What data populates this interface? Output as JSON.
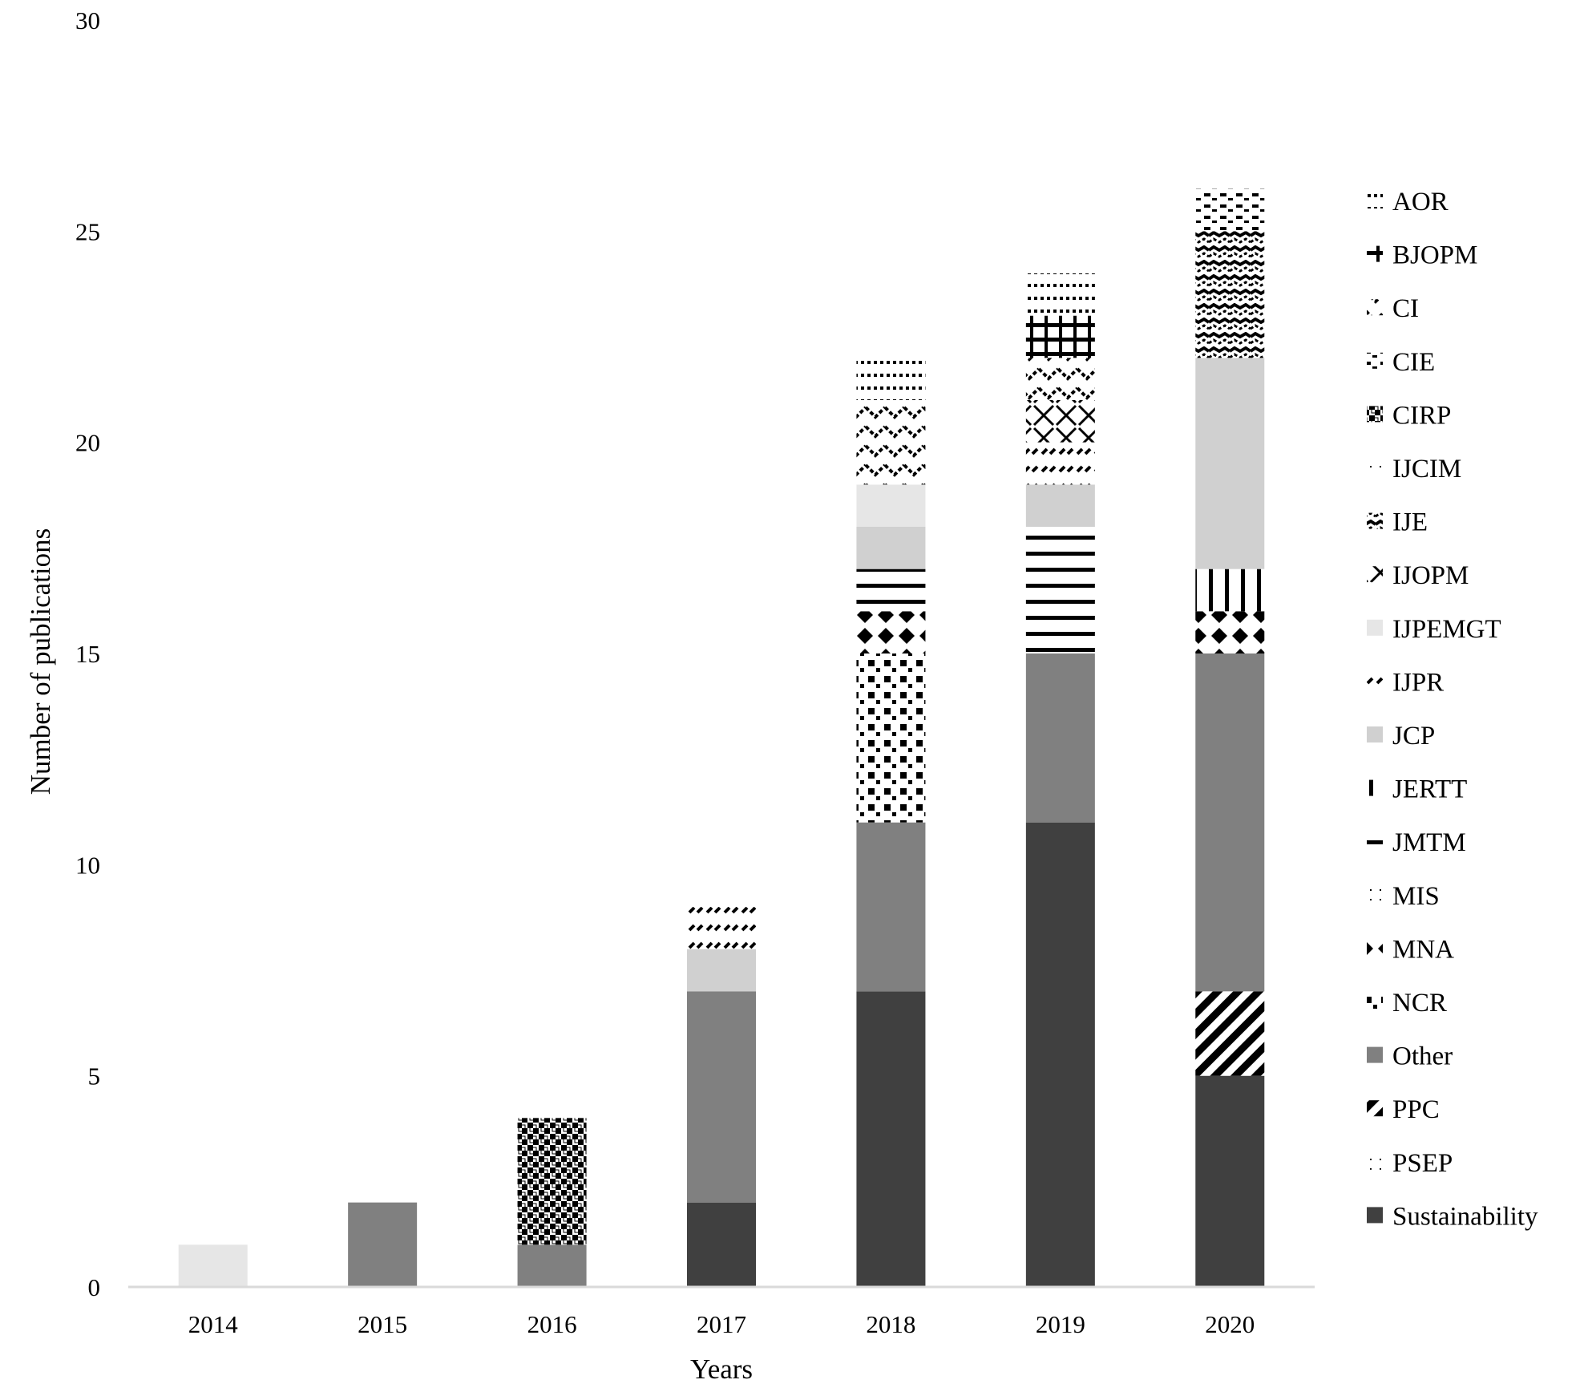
{
  "chart_data": {
    "type": "bar",
    "stacked": true,
    "title": "",
    "xlabel": "Years",
    "ylabel": "Number of publications",
    "ylim": [
      0,
      30
    ],
    "yticks": [
      "0",
      "5",
      "10",
      "15",
      "20",
      "25",
      "30"
    ],
    "grid": false,
    "legend_position": "right",
    "categories": [
      "2014",
      "2015",
      "2016",
      "2017",
      "2018",
      "2019",
      "2020"
    ],
    "series": [
      {
        "name": "AOR",
        "values": [
          0,
          0,
          0,
          0,
          1,
          1,
          0
        ],
        "color": "#ffffff",
        "pattern": "dots-sparse"
      },
      {
        "name": "BJOPM",
        "values": [
          0,
          0,
          0,
          0,
          0,
          1,
          0
        ],
        "color": "#000000",
        "pattern": "grid-bold"
      },
      {
        "name": "CI",
        "values": [
          0,
          0,
          0,
          0,
          2,
          1,
          0
        ],
        "color": "#000000",
        "pattern": "zigzag"
      },
      {
        "name": "CIE",
        "values": [
          0,
          0,
          0,
          0,
          0,
          0,
          1
        ],
        "color": "#000000",
        "pattern": "dashes"
      },
      {
        "name": "CIRP",
        "values": [
          0,
          0,
          3,
          0,
          0,
          0,
          0
        ],
        "color": "#000000",
        "pattern": "checker"
      },
      {
        "name": "IJCIM",
        "values": [
          0,
          0,
          0,
          0,
          0,
          0,
          0
        ],
        "color": "#000000",
        "pattern": "dots"
      },
      {
        "name": "IJE",
        "values": [
          0,
          0,
          0,
          0,
          0,
          0,
          3
        ],
        "color": "#000000",
        "pattern": "waves"
      },
      {
        "name": "IJOPM",
        "values": [
          0,
          0,
          0,
          0,
          0,
          1,
          0
        ],
        "color": "#000000",
        "pattern": "crosshatch"
      },
      {
        "name": "IJPEMGT",
        "values": [
          1,
          0,
          0,
          0,
          1,
          0,
          0
        ],
        "color": "#e6e6e6",
        "pattern": "solid"
      },
      {
        "name": "IJPR",
        "values": [
          0,
          0,
          0,
          1,
          0,
          1,
          0
        ],
        "color": "#000000",
        "pattern": "diagonal-dash"
      },
      {
        "name": "JCP",
        "values": [
          0,
          0,
          0,
          1,
          1,
          1,
          5
        ],
        "color": "#d0d0d0",
        "pattern": "solid"
      },
      {
        "name": "JERTT",
        "values": [
          0,
          0,
          0,
          0,
          0,
          0,
          1
        ],
        "color": "#000000",
        "pattern": "vertical-lines"
      },
      {
        "name": "JMTM",
        "values": [
          0,
          0,
          0,
          0,
          1,
          3,
          0
        ],
        "color": "#000000",
        "pattern": "horizontal-lines"
      },
      {
        "name": "MIS",
        "values": [
          0,
          0,
          0,
          0,
          0,
          0,
          0
        ],
        "color": "#000000",
        "pattern": "dots"
      },
      {
        "name": "MNA",
        "values": [
          0,
          0,
          0,
          0,
          1,
          0,
          1
        ],
        "color": "#000000",
        "pattern": "diamonds"
      },
      {
        "name": "NCR",
        "values": [
          0,
          0,
          0,
          0,
          4,
          0,
          0
        ],
        "color": "#000000",
        "pattern": "squares"
      },
      {
        "name": "Other",
        "values": [
          0,
          2,
          1,
          5,
          4,
          4,
          8
        ],
        "color": "#808080",
        "pattern": "solid"
      },
      {
        "name": "PPC",
        "values": [
          0,
          0,
          0,
          0,
          0,
          0,
          2
        ],
        "color": "#000000",
        "pattern": "diagonal-bold"
      },
      {
        "name": "PSEP",
        "values": [
          0,
          0,
          0,
          0,
          0,
          0,
          0
        ],
        "color": "#000000",
        "pattern": "dots"
      },
      {
        "name": "Sustainability",
        "values": [
          0,
          0,
          0,
          2,
          7,
          11,
          5
        ],
        "color": "#404040",
        "pattern": "solid"
      }
    ]
  }
}
